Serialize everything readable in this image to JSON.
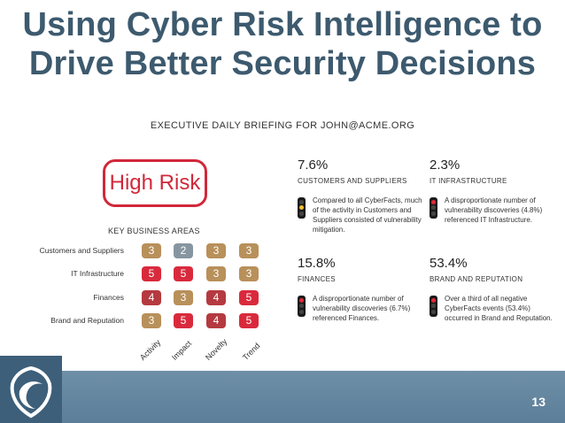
{
  "slide": {
    "title_line1": "Using Cyber Risk Intelligence to",
    "title_line2": "Drive Better Security Decisions",
    "briefing": "EXECUTIVE DAILY BRIEFING FOR JOHN@ACME.ORG",
    "page_number": "13"
  },
  "risk": {
    "label": "High Risk",
    "color": "#d1283a"
  },
  "key_business_areas": {
    "title": "KEY BUSINESS AREAS",
    "columns": [
      "Activity",
      "Impact",
      "Novelty",
      "Trend"
    ],
    "rows": [
      {
        "label": "Customers and Suppliers",
        "values": [
          "3",
          "2",
          "3",
          "3"
        ]
      },
      {
        "label": "IT Infrastructure",
        "values": [
          "5",
          "5",
          "3",
          "3"
        ]
      },
      {
        "label": "Finances",
        "values": [
          "4",
          "3",
          "4",
          "5"
        ]
      },
      {
        "label": "Brand and Reputation",
        "values": [
          "3",
          "5",
          "4",
          "5"
        ]
      }
    ],
    "level_colors": {
      "2": "#8795a0",
      "3": "#b8905a",
      "4": "#b43a40",
      "5": "#d92a3c"
    }
  },
  "metrics": [
    {
      "percent": "7.6%",
      "category": "CUSTOMERS AND SUPPLIERS",
      "description": "Compared to all CyberFacts, much of the activity in Customers and Suppliers consisted of vulnerability mitigation.",
      "light": "yellow"
    },
    {
      "percent": "2.3%",
      "category": "IT INFRASTRUCTURE",
      "description": "A disproportionate number of vulnerability discoveries (4.8%) referenced IT Infrastructure.",
      "light": "red"
    },
    {
      "percent": "15.8%",
      "category": "FINANCES",
      "description": "A disproportionate number of vulnerability discoveries (6.7%) referenced Finances.",
      "light": "red"
    },
    {
      "percent": "53.4%",
      "category": "BRAND AND REPUTATION",
      "description": "Over a third of all negative CyberFacts events (53.4%) occurred in Brand and Reputation.",
      "light": "red"
    }
  ],
  "light_colors": {
    "red": "#e02a3a",
    "yellow": "#f2c12e",
    "off": "#444444"
  }
}
